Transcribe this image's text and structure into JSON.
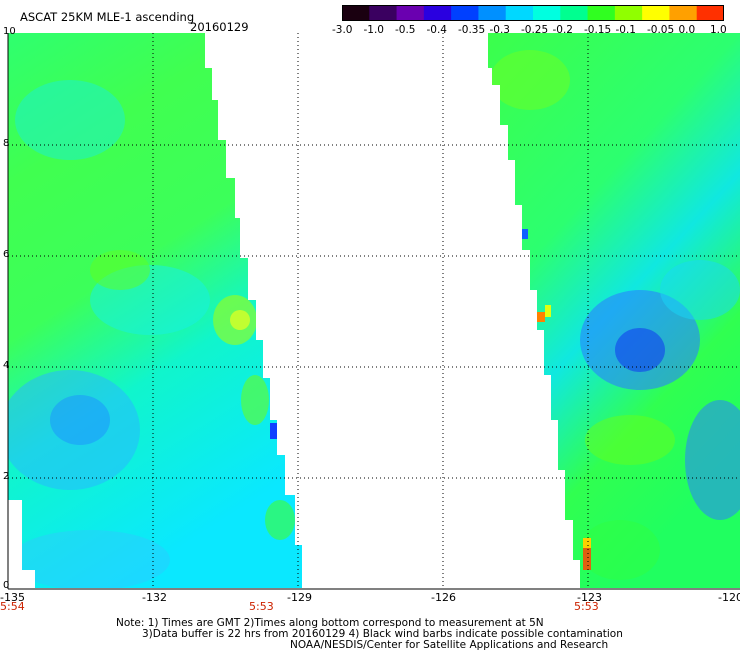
{
  "header": {
    "title": "ASCAT 25KM MLE-1 ascending",
    "date": "20160129"
  },
  "colorbar": {
    "ticks": [
      "-3.0",
      "-1.0",
      "-0.5",
      "-0.4",
      "-0.35",
      "-0.3",
      "-0.25",
      "-0.2",
      "-0.15",
      "-0.1",
      "-0.05",
      "0.0",
      "1.0"
    ],
    "colors": [
      "#1a0010",
      "#3a0060",
      "#6a00b0",
      "#2a00e0",
      "#0040ff",
      "#0090ff",
      "#00d8ff",
      "#00ffe0",
      "#00ff90",
      "#30ff20",
      "#90ff00",
      "#ffff00",
      "#ffa000",
      "#ff3000"
    ]
  },
  "axes": {
    "x_ticks": [
      "-135",
      "-132",
      "-129",
      "-126",
      "-123",
      "-120"
    ],
    "y_ticks": [
      "10",
      "8",
      "6",
      "4",
      "2",
      "0"
    ],
    "time_labels": [
      "5:54",
      "5:53",
      "5:53"
    ]
  },
  "map": {
    "x_range": [
      -135,
      -120
    ],
    "y_range": [
      0,
      10
    ],
    "grid": "dotted at every 3 deg lon, 2 deg lat"
  },
  "notes": {
    "line1": "Note: 1) Times are GMT 2)Times along bottom correspond to measurement at 5N",
    "line2": "3)Data buffer is 22 hrs from 20160129 4) Black wind barbs indicate possible contamination",
    "line3": "NOAA/NESDIS/Center for Satellite Applications and Research"
  }
}
